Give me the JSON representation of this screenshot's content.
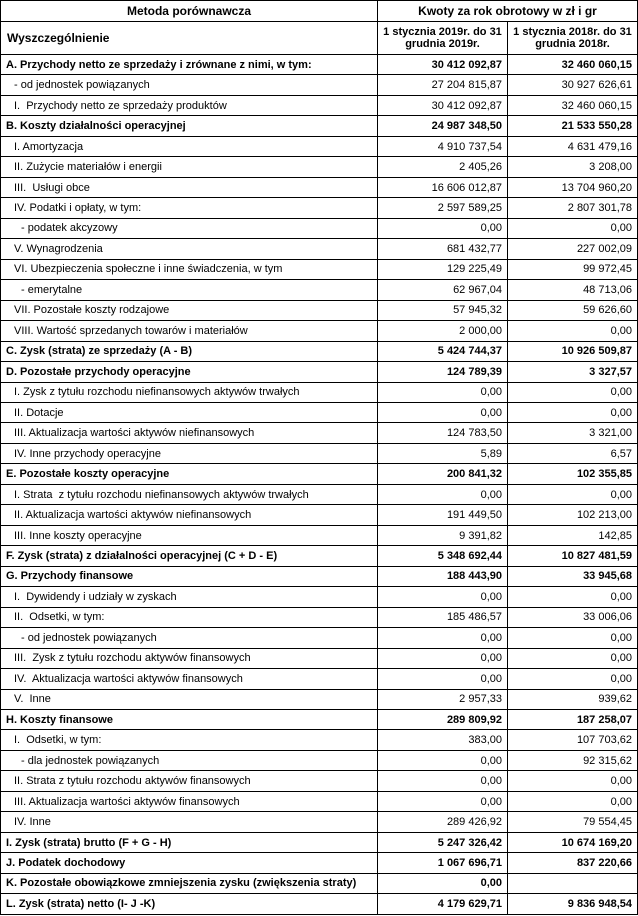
{
  "header": {
    "method": "Metoda porównawcza",
    "specification": "Wyszczególnienie",
    "amounts_title": "Kwoty za rok obrotowy w zł i gr",
    "period_2019": "1 stycznia 2019r. do 31 grudnia 2019r.",
    "period_2018": "1 stycznia 2018r. do 31 grudnia 2018r."
  },
  "rows": [
    {
      "label": "A. Przychody netto ze sprzedaży i zrównane z nimi, w tym:",
      "v2019": "30 412 092,87",
      "v2018": "32 460 060,15",
      "bold": true,
      "indent": 0
    },
    {
      "label": "- od jednostek powiązanych",
      "v2019": "27 204 815,87",
      "v2018": "30 927 626,61",
      "bold": false,
      "indent": 1
    },
    {
      "label": "I.  Przychody netto ze sprzedaży produktów",
      "v2019": "30 412 092,87",
      "v2018": "32 460 060,15",
      "bold": false,
      "indent": 1
    },
    {
      "label": "B. Koszty działalności operacyjnej",
      "v2019": "24 987 348,50",
      "v2018": "21 533 550,28",
      "bold": true,
      "indent": 0
    },
    {
      "label": "I. Amortyzacja",
      "v2019": "4 910 737,54",
      "v2018": "4 631 479,16",
      "bold": false,
      "indent": 1
    },
    {
      "label": "II. Zużycie materiałów i energii",
      "v2019": "2 405,26",
      "v2018": "3 208,00",
      "bold": false,
      "indent": 1
    },
    {
      "label": "III.  Usługi obce",
      "v2019": "16 606 012,87",
      "v2018": "13 704 960,20",
      "bold": false,
      "indent": 1
    },
    {
      "label": "IV. Podatki i opłaty, w tym:",
      "v2019": "2 597 589,25",
      "v2018": "2 807 301,78",
      "bold": false,
      "indent": 1
    },
    {
      "label": "- podatek akcyzowy",
      "v2019": "0,00",
      "v2018": "0,00",
      "bold": false,
      "indent": 2
    },
    {
      "label": "V. Wynagrodzenia",
      "v2019": "681 432,77",
      "v2018": "227 002,09",
      "bold": false,
      "indent": 1
    },
    {
      "label": "VI. Ubezpieczenia społeczne i inne świadczenia, w tym",
      "v2019": "129 225,49",
      "v2018": "99 972,45",
      "bold": false,
      "indent": 1
    },
    {
      "label": "- emerytalne",
      "v2019": "62 967,04",
      "v2018": "48 713,06",
      "bold": false,
      "indent": 2
    },
    {
      "label": "VII. Pozostałe koszty rodzajowe",
      "v2019": "57 945,32",
      "v2018": "59 626,60",
      "bold": false,
      "indent": 1
    },
    {
      "label": "VIII. Wartość sprzedanych towarów i materiałów",
      "v2019": "2 000,00",
      "v2018": "0,00",
      "bold": false,
      "indent": 1
    },
    {
      "label": "C. Zysk (strata) ze sprzedaży (A - B)",
      "v2019": "5 424 744,37",
      "v2018": "10 926 509,87",
      "bold": true,
      "indent": 0
    },
    {
      "label": "D. Pozostałe przychody operacyjne",
      "v2019": "124 789,39",
      "v2018": "3 327,57",
      "bold": true,
      "indent": 0
    },
    {
      "label": "I. Zysk z tytułu rozchodu niefinansowych aktywów trwałych",
      "v2019": "0,00",
      "v2018": "0,00",
      "bold": false,
      "indent": 1
    },
    {
      "label": "II. Dotacje",
      "v2019": "0,00",
      "v2018": "0,00",
      "bold": false,
      "indent": 1
    },
    {
      "label": "III. Aktualizacja wartości aktywów niefinansowych",
      "v2019": "124 783,50",
      "v2018": "3 321,00",
      "bold": false,
      "indent": 1
    },
    {
      "label": "IV. Inne przychody operacyjne",
      "v2019": "5,89",
      "v2018": "6,57",
      "bold": false,
      "indent": 1
    },
    {
      "label": "E. Pozostałe koszty operacyjne",
      "v2019": "200 841,32",
      "v2018": "102 355,85",
      "bold": true,
      "indent": 0
    },
    {
      "label": "I. Strata  z tytułu rozchodu niefinansowych aktywów trwałych",
      "v2019": "0,00",
      "v2018": "0,00",
      "bold": false,
      "indent": 1
    },
    {
      "label": "II. Aktualizacja wartości aktywów niefinansowych",
      "v2019": "191 449,50",
      "v2018": "102 213,00",
      "bold": false,
      "indent": 1
    },
    {
      "label": "III. Inne koszty operacyjne",
      "v2019": "9 391,82",
      "v2018": "142,85",
      "bold": false,
      "indent": 1
    },
    {
      "label": "F. Zysk (strata) z działalności operacyjnej (C + D - E)",
      "v2019": "5 348 692,44",
      "v2018": "10 827 481,59",
      "bold": true,
      "indent": 0
    },
    {
      "label": "G. Przychody finansowe",
      "v2019": "188 443,90",
      "v2018": "33 945,68",
      "bold": true,
      "indent": 0
    },
    {
      "label": "I.  Dywidendy i udziały w zyskach",
      "v2019": "0,00",
      "v2018": "0,00",
      "bold": false,
      "indent": 1
    },
    {
      "label": "II.  Odsetki, w tym:",
      "v2019": "185 486,57",
      "v2018": "33 006,06",
      "bold": false,
      "indent": 1
    },
    {
      "label": "- od jednostek powiązanych",
      "v2019": "0,00",
      "v2018": "0,00",
      "bold": false,
      "indent": 2
    },
    {
      "label": "III.  Zysk z tytułu rozchodu aktywów finansowych",
      "v2019": "0,00",
      "v2018": "0,00",
      "bold": false,
      "indent": 1
    },
    {
      "label": "IV.  Aktualizacja wartości aktywów finansowych",
      "v2019": "0,00",
      "v2018": "0,00",
      "bold": false,
      "indent": 1
    },
    {
      "label": "V.  Inne",
      "v2019": "2 957,33",
      "v2018": "939,62",
      "bold": false,
      "indent": 1
    },
    {
      "label": "H. Koszty finansowe",
      "v2019": "289 809,92",
      "v2018": "187 258,07",
      "bold": true,
      "indent": 0
    },
    {
      "label": "I.  Odsetki, w tym:",
      "v2019": "383,00",
      "v2018": "107 703,62",
      "bold": false,
      "indent": 1
    },
    {
      "label": "- dla jednostek powiązanych",
      "v2019": "0,00",
      "v2018": "92 315,62",
      "bold": false,
      "indent": 2
    },
    {
      "label": "II. Strata z tytułu rozchodu aktywów finansowych",
      "v2019": "0,00",
      "v2018": "0,00",
      "bold": false,
      "indent": 1
    },
    {
      "label": "III. Aktualizacja wartości aktywów finansowych",
      "v2019": "0,00",
      "v2018": "0,00",
      "bold": false,
      "indent": 1
    },
    {
      "label": "IV. Inne",
      "v2019": "289 426,92",
      "v2018": "79 554,45",
      "bold": false,
      "indent": 1
    },
    {
      "label": "I. Zysk (strata) brutto (F + G - H)",
      "v2019": "5 247 326,42",
      "v2018": "10 674 169,20",
      "bold": true,
      "indent": 0
    },
    {
      "label": "J. Podatek dochodowy",
      "v2019": "1 067 696,71",
      "v2018": "837 220,66",
      "bold": true,
      "indent": 0
    },
    {
      "label": "K. Pozostałe obowiązkowe zmniejszenia zysku (zwiększenia straty)",
      "v2019": "0,00",
      "v2018": "",
      "bold": true,
      "indent": 0
    },
    {
      "label": "L. Zysk (strata) netto (I- J -K)",
      "v2019": "4 179 629,71",
      "v2018": "9 836 948,54",
      "bold": true,
      "indent": 0
    }
  ]
}
